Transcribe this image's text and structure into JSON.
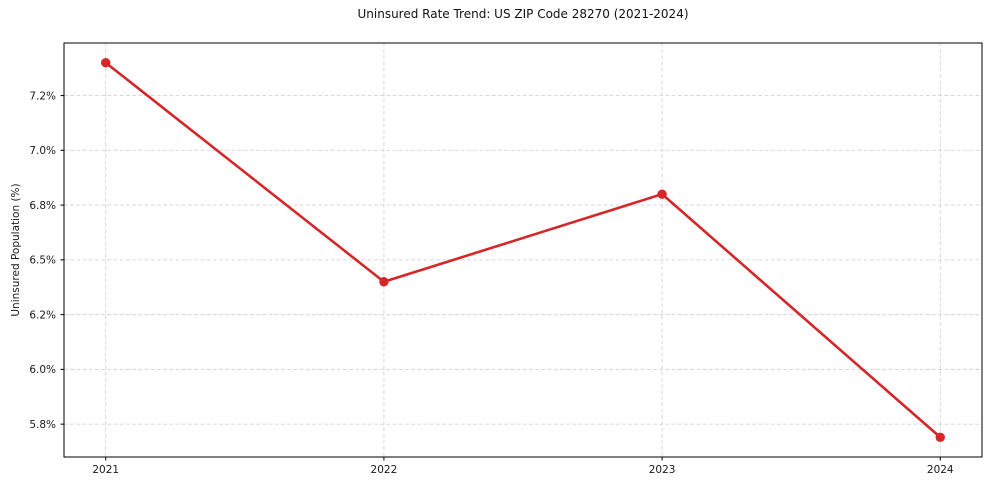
{
  "figure": {
    "title": "Uninsured Rate Trend: US ZIP Code 28270 (2021-2024)"
  },
  "chart_data": {
    "type": "line",
    "title": "Uninsured Rate Trend: US ZIP Code 28270 (2021-2024)",
    "xlabel": "",
    "ylabel": "Uninsured Population (%)",
    "x": [
      2021,
      2022,
      2023,
      2024
    ],
    "series": [
      {
        "name": "uninsured-rate",
        "values": [
          7.4,
          6.4,
          6.8,
          5.69
        ],
        "color": "#d62728",
        "marker": "circle",
        "line_width": 2.6,
        "marker_radius": 4.7
      }
    ],
    "xlim": [
      2020.85,
      2024.15
    ],
    "ylim": [
      5.6,
      7.49
    ],
    "xticks": {
      "values": [
        2021,
        2022,
        2023,
        2024
      ],
      "labels": [
        "2021",
        "2022",
        "2023",
        "2024"
      ]
    },
    "yticks": {
      "values": [
        7.25,
        7.0,
        6.75,
        6.5,
        6.25,
        6.0,
        5.75
      ],
      "labels": [
        "7.2%",
        "7.0%",
        "6.8%",
        "6.5%",
        "6.2%",
        "6.0%",
        "5.8%"
      ]
    },
    "grid": {
      "show": true,
      "style": "dashed",
      "color": "#d3d3d3",
      "dash": "3.8 2.4",
      "line_width": 0.9,
      "axes": "both"
    },
    "legend": {
      "show": false
    },
    "frame_color": "#000000",
    "tick_color": "#000000",
    "text_color": "#1a1a1a",
    "background": "#ffffff",
    "tick_label_size": 10.5,
    "tick_length": 3.5
  }
}
